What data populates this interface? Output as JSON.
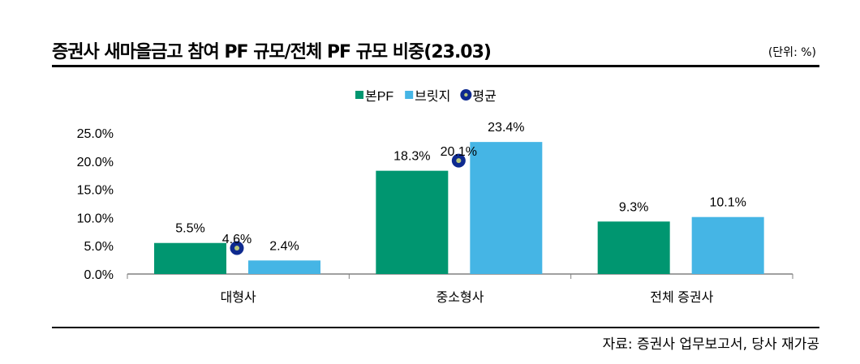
{
  "title": "증권사 새마을금고 참여 PF 규모/전체 PF 규모 비중(23.03)",
  "unit": "(단위: %)",
  "source": "자료: 증권사 업무보고서, 당사 재가공",
  "chart_data": {
    "type": "bar",
    "categories": [
      "대형사",
      "중소형사",
      "전체 증권사"
    ],
    "series": [
      {
        "name": "본PF",
        "type": "bar",
        "color": "#009670",
        "values": [
          5.5,
          18.3,
          9.3
        ]
      },
      {
        "name": "브릿지",
        "type": "bar",
        "color": "#45b5e5",
        "values": [
          2.4,
          23.4,
          10.1
        ]
      },
      {
        "name": "평균",
        "type": "marker",
        "color": "#0e2a8f",
        "values": [
          4.6,
          20.1,
          null
        ]
      }
    ],
    "ylim": [
      0,
      25
    ],
    "yticks": [
      "0.0%",
      "5.0%",
      "10.0%",
      "15.0%",
      "20.0%",
      "25.0%"
    ],
    "legend": "top-center",
    "grid": false
  }
}
